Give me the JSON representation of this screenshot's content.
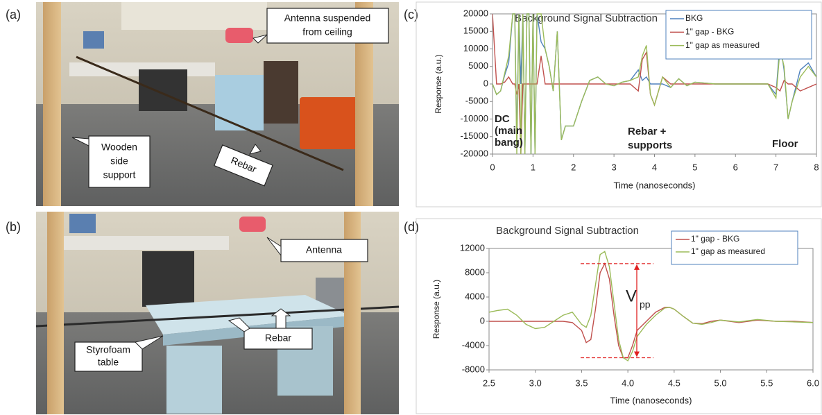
{
  "panel_labels": [
    "(a)",
    "(b)",
    "(c)",
    "(d)"
  ],
  "photos": [
    {
      "callouts": [
        [
          "Antenna suspended",
          "from ceiling"
        ],
        [
          "Wooden",
          "side",
          "support"
        ],
        [
          "Rebar"
        ]
      ]
    },
    {
      "callouts": [
        [
          "Antenna"
        ],
        [
          "Rebar"
        ],
        [
          "Styrofoam",
          "table"
        ]
      ]
    }
  ],
  "chart_data": [
    {
      "type": "line",
      "title": "Background Signal Subtraction",
      "xlabel": "Time  (nanoseconds)",
      "ylabel": "Response (a.u.)",
      "x": [
        0,
        0.1,
        0.2,
        0.3,
        0.4,
        0.5,
        0.55,
        0.6,
        0.65,
        0.7,
        0.75,
        0.8,
        0.85,
        0.9,
        0.95,
        1.0,
        1.05,
        1.1,
        1.2,
        1.3,
        1.4,
        1.5,
        1.6,
        1.7,
        1.8,
        1.9,
        2.0,
        2.2,
        2.4,
        2.6,
        2.8,
        3.0,
        3.2,
        3.4,
        3.6,
        3.7,
        3.8,
        3.9,
        4.0,
        4.2,
        4.4,
        4.6,
        4.8,
        5.0,
        5.5,
        6.0,
        6.5,
        6.8,
        7.0,
        7.1,
        7.2,
        7.3,
        7.4,
        7.6,
        7.8,
        8.0
      ],
      "series": [
        {
          "name": "BKG",
          "color": "#4f81bd",
          "values": [
            0,
            -3000,
            -2000,
            2500,
            6000,
            20000,
            20000,
            -17000,
            20000,
            0,
            20000,
            -20000,
            20000,
            20000,
            -20000,
            20000,
            -20000,
            20000,
            12000,
            10000,
            5000,
            -2000,
            15000,
            -16000,
            -12000,
            -12000,
            -12000,
            -5000,
            1000,
            2000,
            0,
            -500,
            500,
            1000,
            4000,
            1000,
            2000,
            0,
            0,
            0,
            -1000,
            1500,
            -500,
            500,
            0,
            0,
            0,
            0,
            -3000,
            12000,
            4000,
            -10000,
            -5000,
            4000,
            6000,
            2000
          ]
        },
        {
          "name": "1\" gap - BKG",
          "color": "#c0504d",
          "values": [
            20000,
            0,
            0,
            500,
            2000,
            0,
            0,
            -3000,
            0,
            -20000,
            0,
            0,
            0,
            0,
            0,
            0,
            0,
            0,
            8000,
            0,
            0,
            0,
            0,
            0,
            0,
            0,
            0,
            0,
            0,
            0,
            0,
            0,
            0,
            0,
            -2000,
            7000,
            9000,
            -3000,
            -6000,
            2000,
            0,
            0,
            0,
            0,
            0,
            0,
            0,
            0,
            -1000,
            -2000,
            1000,
            0,
            0,
            -2000,
            -1000,
            0
          ]
        },
        {
          "name": "1\" gap as measured",
          "color": "#9bbb59",
          "values": [
            0,
            -3000,
            -2000,
            3000,
            8000,
            20000,
            20000,
            -20000,
            20000,
            -20000,
            20000,
            -20000,
            20000,
            20000,
            -20000,
            20000,
            -20000,
            20000,
            20000,
            10000,
            5000,
            -2000,
            15000,
            -16000,
            -12000,
            -12000,
            -12000,
            -5000,
            1000,
            2000,
            0,
            -500,
            500,
            1000,
            2000,
            8000,
            11000,
            -3000,
            -6000,
            2000,
            -1000,
            1500,
            -500,
            500,
            0,
            0,
            0,
            0,
            -4000,
            10000,
            5000,
            -10000,
            -5000,
            2000,
            5000,
            2000
          ]
        }
      ],
      "xlim": [
        0,
        8
      ],
      "ylim": [
        -20000,
        20000
      ],
      "xticks": [
        0,
        1,
        2,
        3,
        4,
        5,
        6,
        7,
        8
      ],
      "yticks": [
        -20000,
        -15000,
        -10000,
        -5000,
        0,
        5000,
        10000,
        15000,
        20000
      ],
      "legend": "upper right",
      "annotations": [
        "DC",
        "(main",
        "bang)",
        "Rebar +",
        "supports",
        "Floor"
      ]
    },
    {
      "type": "line",
      "title": "Background Signal Subtraction",
      "xlabel": "Time  (nanoseconds)",
      "ylabel": "Response (a.u.)",
      "x": [
        2.5,
        2.6,
        2.7,
        2.8,
        2.9,
        3.0,
        3.1,
        3.2,
        3.3,
        3.4,
        3.5,
        3.55,
        3.6,
        3.65,
        3.7,
        3.75,
        3.8,
        3.85,
        3.9,
        3.95,
        4.0,
        4.05,
        4.1,
        4.2,
        4.3,
        4.4,
        4.45,
        4.5,
        4.6,
        4.7,
        4.8,
        4.9,
        5.0,
        5.2,
        5.4,
        5.6,
        5.8,
        6.0
      ],
      "series": [
        {
          "name": "1\" gap - BKG",
          "color": "#c0504d",
          "values": [
            0,
            0,
            0,
            0,
            0,
            0,
            0,
            0,
            0,
            -200,
            -1500,
            -3500,
            -3000,
            2000,
            8000,
            9500,
            7000,
            1000,
            -4000,
            -6000,
            -6000,
            -4000,
            -1500,
            0,
            1500,
            2300,
            2300,
            2000,
            800,
            -300,
            -400,
            0,
            200,
            -200,
            200,
            0,
            0,
            -200
          ]
        },
        {
          "name": "1\" gap as measured",
          "color": "#9bbb59",
          "values": [
            1500,
            1800,
            2000,
            1000,
            -500,
            -1200,
            -1000,
            0,
            1000,
            1500,
            -500,
            -1000,
            1000,
            6000,
            11000,
            11500,
            9000,
            3000,
            -3000,
            -6000,
            -6500,
            -5000,
            -2500,
            -500,
            1000,
            2200,
            2300,
            2000,
            800,
            -300,
            -500,
            -200,
            200,
            -100,
            300,
            0,
            -100,
            -200
          ]
        }
      ],
      "xlim": [
        2.5,
        6.0
      ],
      "ylim": [
        -8000,
        12000
      ],
      "xticks": [
        2.5,
        {
          "value": 3,
          "label": "3.0"
        },
        3.5,
        {
          "value": 4,
          "label": "4.0"
        },
        4.5,
        {
          "value": 5,
          "label": "5.0"
        },
        5.5,
        {
          "value": 6,
          "label": "6.0"
        }
      ],
      "yticks": [
        -8000,
        -4000,
        0,
        4000,
        8000,
        12000
      ],
      "legend": "upper right",
      "annotations": [
        "V",
        "pp"
      ]
    }
  ]
}
